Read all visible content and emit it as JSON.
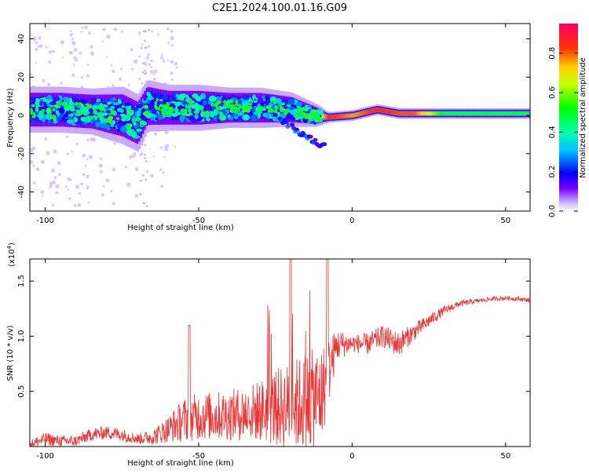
{
  "title": "C2E1.2024.100.01.16.G09",
  "chart_data": [
    {
      "type": "heatmap",
      "xlabel": "Height of straight line (km)",
      "ylabel": "Frequency (Hz)",
      "xlim": [
        -105,
        58
      ],
      "ylim": [
        -50,
        48
      ],
      "x_ticks": [
        -100,
        -50,
        0,
        50
      ],
      "y_ticks": [
        -40,
        -20,
        0,
        20,
        40
      ],
      "colorbar": {
        "label": "Normalized spectral amplitude",
        "range": [
          0.0,
          0.95
        ],
        "ticks": [
          0.0,
          0.2,
          0.4,
          0.6,
          0.8
        ]
      },
      "ridge": [
        {
          "x": -104,
          "f": 3,
          "spread": 8,
          "amp": 0.45
        },
        {
          "x": -95,
          "f": 3,
          "spread": 8,
          "amp": 0.45
        },
        {
          "x": -85,
          "f": 2,
          "spread": 8,
          "amp": 0.45
        },
        {
          "x": -75,
          "f": 0,
          "spread": 10,
          "amp": 0.4
        },
        {
          "x": -70,
          "f": -4,
          "spread": 10,
          "amp": 0.35
        },
        {
          "x": -67,
          "f": 5,
          "spread": 9,
          "amp": 0.4
        },
        {
          "x": -60,
          "f": 4,
          "spread": 8,
          "amp": 0.45
        },
        {
          "x": -50,
          "f": 4,
          "spread": 8,
          "amp": 0.45
        },
        {
          "x": -40,
          "f": 4,
          "spread": 7,
          "amp": 0.45
        },
        {
          "x": -30,
          "f": 4,
          "spread": 7,
          "amp": 0.45
        },
        {
          "x": -20,
          "f": 3,
          "spread": 6,
          "amp": 0.45
        },
        {
          "x": -12,
          "f": 0,
          "spread": 4,
          "amp": 0.6
        },
        {
          "x": -8,
          "f": -1,
          "spread": 2,
          "amp": 0.9
        },
        {
          "x": 0,
          "f": 0,
          "spread": 2,
          "amp": 0.8
        },
        {
          "x": 8,
          "f": 3,
          "spread": 2,
          "amp": 0.9
        },
        {
          "x": 15,
          "f": 1,
          "spread": 2,
          "amp": 0.85
        },
        {
          "x": 20,
          "f": 1,
          "spread": 2,
          "amp": 0.85
        },
        {
          "x": 30,
          "f": 1,
          "spread": 2,
          "amp": 0.5
        },
        {
          "x": 40,
          "f": 1,
          "spread": 2,
          "amp": 0.5
        },
        {
          "x": 50,
          "f": 1,
          "spread": 2,
          "amp": 0.5
        },
        {
          "x": 58,
          "f": 1,
          "spread": 2,
          "amp": 0.5
        }
      ],
      "branch": [
        {
          "x": -25,
          "f": 0
        },
        {
          "x": -18,
          "f": -8
        },
        {
          "x": -12,
          "f": -14
        },
        {
          "x": -9,
          "f": -16
        }
      ]
    },
    {
      "type": "line",
      "xlabel": "Height of straight line (km)",
      "ylabel": "SNR (10 * v/v)",
      "multiplier_label": "(x10",
      "multiplier_exp": "4",
      "xlim": [
        -105,
        58
      ],
      "ylim": [
        0,
        1.7
      ],
      "x_ticks": [
        -100,
        -50,
        0,
        50
      ],
      "y_ticks": [
        0.5,
        1.0,
        1.5
      ],
      "color": "#ee3333",
      "envelope": {
        "x": [
          -105,
          -100,
          -95,
          -90,
          -85,
          -80,
          -75,
          -70,
          -65,
          -60,
          -55,
          -50,
          -45,
          -40,
          -35,
          -30,
          -25,
          -20,
          -15,
          -10,
          -5,
          0,
          5,
          10,
          15,
          20,
          25,
          30,
          35,
          40,
          45,
          50,
          55,
          58
        ],
        "base": [
          0.03,
          0.08,
          0.06,
          0.06,
          0.12,
          0.14,
          0.12,
          0.08,
          0.1,
          0.18,
          0.28,
          0.32,
          0.32,
          0.33,
          0.35,
          0.38,
          0.42,
          0.45,
          0.5,
          0.55,
          0.95,
          0.95,
          0.95,
          1.02,
          0.95,
          1.05,
          1.15,
          1.24,
          1.3,
          1.32,
          1.34,
          1.35,
          1.34,
          1.33
        ],
        "noise": [
          0.04,
          0.06,
          0.05,
          0.05,
          0.06,
          0.06,
          0.06,
          0.05,
          0.07,
          0.12,
          0.2,
          0.22,
          0.22,
          0.23,
          0.25,
          0.28,
          0.35,
          0.4,
          0.45,
          0.45,
          0.15,
          0.08,
          0.1,
          0.1,
          0.12,
          0.08,
          0.06,
          0.04,
          0.03,
          0.02,
          0.02,
          0.02,
          0.02,
          0.02
        ]
      }
    }
  ]
}
